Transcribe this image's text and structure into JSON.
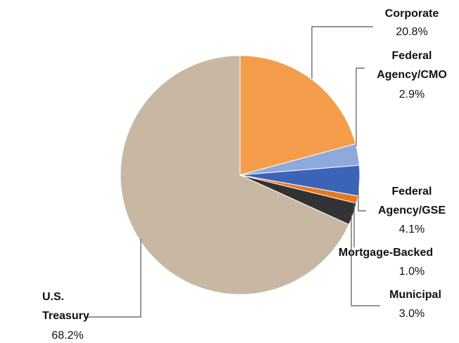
{
  "chart_data": {
    "type": "pie",
    "categories": [
      "Corporate",
      "Federal Agency/CMO",
      "Federal Agency/GSE",
      "Mortgage-Backed",
      "Municipal",
      "U.S. Treasury"
    ],
    "values": [
      20.8,
      2.9,
      4.1,
      1.0,
      3.0,
      68.2
    ],
    "value_labels": [
      "20.8%",
      "2.9%",
      "4.1%",
      "1.0%",
      "3.0%",
      "68.2%"
    ],
    "colors": [
      "#F59D4A",
      "#8EA9DB",
      "#3B64B9",
      "#E8781E",
      "#333333",
      "#C8B8A3"
    ]
  }
}
